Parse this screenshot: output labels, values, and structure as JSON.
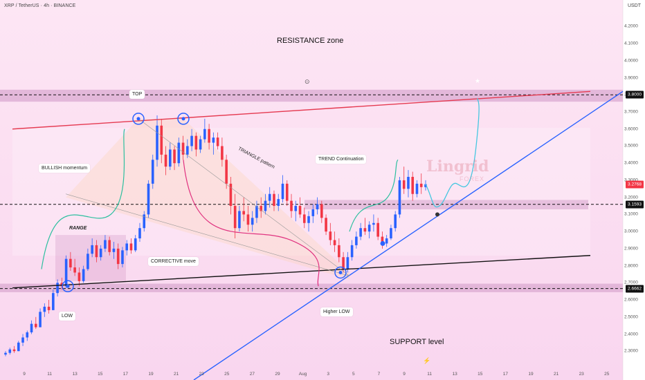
{
  "header": {
    "symbol": "XRP / TetherUS · 4h · BINANCE",
    "currency": "USDT"
  },
  "chart_data": {
    "type": "candlestick",
    "price_scale": {
      "min": 2.25,
      "max": 4.3,
      "ticks": [
        "4.2000",
        "4.1000",
        "4.0000",
        "3.9000",
        "3.8000",
        "3.7000",
        "3.6000",
        "3.5000",
        "3.4000",
        "3.3000",
        "3.2000",
        "3.1000",
        "3.0000",
        "2.9000",
        "2.8000",
        "2.7000",
        "2.6000",
        "2.5000",
        "2.4000",
        "2.3000"
      ]
    },
    "time_axis": [
      "9",
      "11",
      "13",
      "15",
      "17",
      "19",
      "21",
      "23",
      "25",
      "27",
      "29",
      "Aug",
      "3",
      "5",
      "7",
      "9",
      "11",
      "13",
      "15",
      "17",
      "19",
      "21",
      "23",
      "25"
    ],
    "price_labels": [
      {
        "value": 3.8,
        "text": "3.8000",
        "color": "#111111"
      },
      {
        "value": 3.2768,
        "text": "3.2768",
        "color": "#f23645"
      },
      {
        "value": 3.1593,
        "text": "3.1593",
        "color": "#111111"
      },
      {
        "value": 2.6662,
        "text": "2.6662",
        "color": "#111111"
      }
    ],
    "candles": [
      [
        2.28,
        2.3,
        2.27,
        2.29
      ],
      [
        2.29,
        2.32,
        2.28,
        2.31
      ],
      [
        2.31,
        2.33,
        2.29,
        2.3
      ],
      [
        2.3,
        2.36,
        2.3,
        2.35
      ],
      [
        2.35,
        2.4,
        2.33,
        2.38
      ],
      [
        2.38,
        2.42,
        2.36,
        2.41
      ],
      [
        2.41,
        2.48,
        2.4,
        2.46
      ],
      [
        2.46,
        2.5,
        2.43,
        2.44
      ],
      [
        2.44,
        2.55,
        2.44,
        2.53
      ],
      [
        2.53,
        2.58,
        2.5,
        2.56
      ],
      [
        2.56,
        2.6,
        2.52,
        2.54
      ],
      [
        2.54,
        2.66,
        2.54,
        2.64
      ],
      [
        2.64,
        2.72,
        2.62,
        2.7
      ],
      [
        2.7,
        2.73,
        2.66,
        2.68
      ],
      [
        2.68,
        2.86,
        2.67,
        2.84
      ],
      [
        2.84,
        2.88,
        2.77,
        2.79
      ],
      [
        2.79,
        2.84,
        2.74,
        2.76
      ],
      [
        2.76,
        2.79,
        2.68,
        2.71
      ],
      [
        2.71,
        2.8,
        2.7,
        2.78
      ],
      [
        2.78,
        2.9,
        2.77,
        2.87
      ],
      [
        2.87,
        2.96,
        2.85,
        2.92
      ],
      [
        2.92,
        2.95,
        2.82,
        2.85
      ],
      [
        2.85,
        2.92,
        2.83,
        2.9
      ],
      [
        2.9,
        2.98,
        2.88,
        2.95
      ],
      [
        2.95,
        2.97,
        2.86,
        2.88
      ],
      [
        2.88,
        2.94,
        2.84,
        2.9
      ],
      [
        2.9,
        2.93,
        2.78,
        2.81
      ],
      [
        2.81,
        2.91,
        2.79,
        2.89
      ],
      [
        2.89,
        2.95,
        2.86,
        2.93
      ],
      [
        2.93,
        2.96,
        2.87,
        2.89
      ],
      [
        2.89,
        2.98,
        2.88,
        2.96
      ],
      [
        2.96,
        3.05,
        2.94,
        3.02
      ],
      [
        3.02,
        3.12,
        3.0,
        3.1
      ],
      [
        3.1,
        3.3,
        3.08,
        3.28
      ],
      [
        3.28,
        3.45,
        3.25,
        3.42
      ],
      [
        3.42,
        3.68,
        3.38,
        3.62
      ],
      [
        3.62,
        3.66,
        3.4,
        3.45
      ],
      [
        3.45,
        3.5,
        3.33,
        3.38
      ],
      [
        3.38,
        3.52,
        3.36,
        3.48
      ],
      [
        3.48,
        3.5,
        3.36,
        3.4
      ],
      [
        3.4,
        3.55,
        3.38,
        3.52
      ],
      [
        3.52,
        3.56,
        3.42,
        3.45
      ],
      [
        3.45,
        3.54,
        3.43,
        3.5
      ],
      [
        3.5,
        3.6,
        3.47,
        3.56
      ],
      [
        3.56,
        3.58,
        3.44,
        3.48
      ],
      [
        3.48,
        3.56,
        3.46,
        3.54
      ],
      [
        3.54,
        3.66,
        3.52,
        3.6
      ],
      [
        3.6,
        3.63,
        3.48,
        3.52
      ],
      [
        3.52,
        3.58,
        3.45,
        3.55
      ],
      [
        3.55,
        3.58,
        3.48,
        3.5
      ],
      [
        3.5,
        3.55,
        3.38,
        3.42
      ],
      [
        3.42,
        3.45,
        3.25,
        3.28
      ],
      [
        3.28,
        3.32,
        3.1,
        3.15
      ],
      [
        3.15,
        3.22,
        2.96,
        3.02
      ],
      [
        3.02,
        3.15,
        3.0,
        3.12
      ],
      [
        3.12,
        3.2,
        3.06,
        3.1
      ],
      [
        3.1,
        3.15,
        3.0,
        3.04
      ],
      [
        3.04,
        3.12,
        3.0,
        3.08
      ],
      [
        3.08,
        3.18,
        3.05,
        3.15
      ],
      [
        3.15,
        3.2,
        3.08,
        3.12
      ],
      [
        3.12,
        3.22,
        3.1,
        3.18
      ],
      [
        3.18,
        3.26,
        3.14,
        3.22
      ],
      [
        3.22,
        3.24,
        3.12,
        3.15
      ],
      [
        3.15,
        3.22,
        3.12,
        3.19
      ],
      [
        3.19,
        3.33,
        3.17,
        3.28
      ],
      [
        3.28,
        3.3,
        3.15,
        3.18
      ],
      [
        3.18,
        3.22,
        3.08,
        3.12
      ],
      [
        3.12,
        3.18,
        3.06,
        3.15
      ],
      [
        3.15,
        3.2,
        3.08,
        3.1
      ],
      [
        3.1,
        3.14,
        3.02,
        3.05
      ],
      [
        3.05,
        3.12,
        3.0,
        3.09
      ],
      [
        3.09,
        3.16,
        3.05,
        3.13
      ],
      [
        3.13,
        3.2,
        3.1,
        3.16
      ],
      [
        3.16,
        3.18,
        3.05,
        3.08
      ],
      [
        3.08,
        3.1,
        2.98,
        3.0
      ],
      [
        3.0,
        3.05,
        2.92,
        2.95
      ],
      [
        2.95,
        3.0,
        2.88,
        2.92
      ],
      [
        2.92,
        2.96,
        2.82,
        2.85
      ],
      [
        2.85,
        2.88,
        2.76,
        2.78
      ],
      [
        2.78,
        2.88,
        2.76,
        2.85
      ],
      [
        2.85,
        2.95,
        2.83,
        2.92
      ],
      [
        2.92,
        3.0,
        2.9,
        2.97
      ],
      [
        2.97,
        3.05,
        2.95,
        3.02
      ],
      [
        3.02,
        3.08,
        2.98,
        3.0
      ],
      [
        3.0,
        3.06,
        2.96,
        3.04
      ],
      [
        3.04,
        3.1,
        3.0,
        3.05
      ],
      [
        3.05,
        3.08,
        2.95,
        2.97
      ],
      [
        2.97,
        3.0,
        2.9,
        2.93
      ],
      [
        2.93,
        2.98,
        2.91,
        2.96
      ],
      [
        2.96,
        3.04,
        2.95,
        3.02
      ],
      [
        3.02,
        3.12,
        3.0,
        3.1
      ],
      [
        3.1,
        3.32,
        3.08,
        3.3
      ],
      [
        3.3,
        3.38,
        3.22,
        3.25
      ],
      [
        3.25,
        3.36,
        3.2,
        3.32
      ],
      [
        3.32,
        3.35,
        3.18,
        3.22
      ],
      [
        3.22,
        3.3,
        3.2,
        3.28
      ],
      [
        3.28,
        3.34,
        3.22,
        3.26
      ],
      [
        3.26,
        3.3,
        3.24,
        3.2768
      ]
    ],
    "projection_path_prices": [
      3.2768,
      3.16,
      3.13,
      3.2,
      3.3,
      3.28,
      3.18,
      3.5,
      3.78
    ]
  },
  "annotations": {
    "resistance_zone": "RESISTANCE zone",
    "top": "TOP",
    "bullish_momentum": "BULLISH momentum",
    "range": "RANGE",
    "low": "LOW",
    "corrective_move": "CORRECTIVE move",
    "triangle_pattern": "TRIANGLE pattern",
    "trend_continuation": "TREND Continuation",
    "higher_low": "Higher LOW",
    "support_level": "SUPPORT level"
  },
  "watermark": {
    "brand": "Lingrid",
    "sub": "FOREX"
  },
  "colors": {
    "up": "#2962ff",
    "down": "#f23645",
    "trendline_red": "#e53950",
    "trendline_blue": "#2962ff",
    "zone": "#d8a6cf"
  }
}
